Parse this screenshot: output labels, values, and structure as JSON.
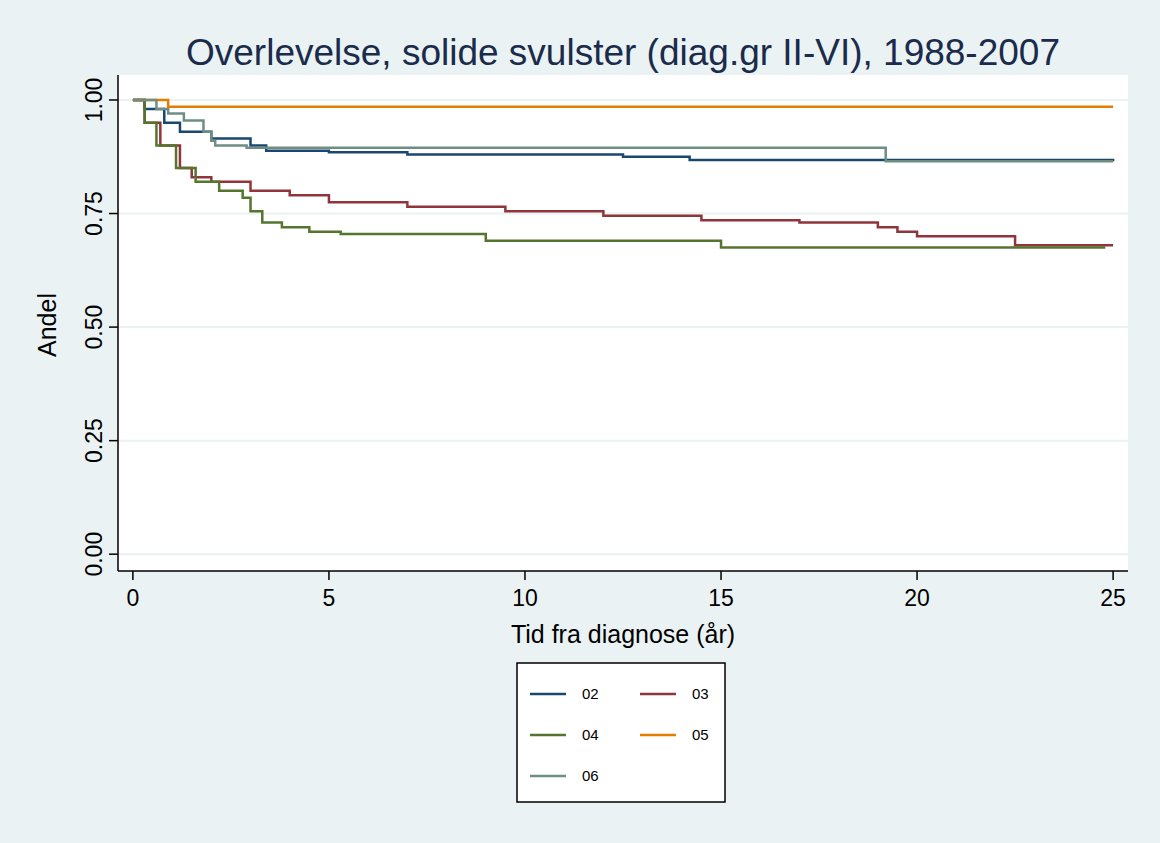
{
  "chart_data": {
    "type": "line",
    "title": "Overlevelse, solide svulster (diag.gr II-VI), 1988-2007",
    "x_label": "Tid fra diagnose (år)",
    "y_label": "Andel",
    "xlim": [
      -0.38,
      25.38
    ],
    "ylim": [
      -0.037,
      1.055
    ],
    "xticks": [
      0,
      5,
      10,
      15,
      20,
      25
    ],
    "yticks": [
      {
        "value": 0,
        "label": "0.00"
      },
      {
        "value": 0.25,
        "label": "0.25"
      },
      {
        "value": 0.5,
        "label": "0.50"
      },
      {
        "value": 0.75,
        "label": "0.75"
      },
      {
        "value": 1,
        "label": "1.00"
      }
    ],
    "grid": true,
    "legend": "bottom",
    "series": [
      {
        "name": "02",
        "color": "#1a476f",
        "line_style": "step",
        "x": [
          0,
          0.3,
          0.8,
          1.2,
          2,
          3,
          3.4,
          5,
          7,
          12.5,
          14.2,
          25
        ],
        "values": [
          1.0,
          0.98,
          0.95,
          0.93,
          0.915,
          0.9,
          0.888,
          0.885,
          0.88,
          0.875,
          0.868,
          0.865
        ]
      },
      {
        "name": "03",
        "color": "#90353b",
        "line_style": "step",
        "x": [
          0,
          0.3,
          0.7,
          1.2,
          1.5,
          2,
          3,
          4,
          5,
          7,
          9.5,
          12,
          14.5,
          17,
          19,
          19.5,
          20,
          22.5,
          25
        ],
        "values": [
          1.0,
          0.95,
          0.9,
          0.85,
          0.83,
          0.82,
          0.8,
          0.79,
          0.775,
          0.765,
          0.755,
          0.745,
          0.735,
          0.73,
          0.72,
          0.71,
          0.7,
          0.68,
          0.68
        ]
      },
      {
        "name": "04",
        "color": "#55752f",
        "line_style": "step",
        "x": [
          0,
          0.3,
          0.6,
          1.1,
          1.6,
          2.2,
          2.8,
          3,
          3.3,
          3.8,
          4.5,
          5.3,
          9,
          15,
          24.8
        ],
        "values": [
          1.0,
          0.95,
          0.9,
          0.85,
          0.82,
          0.8,
          0.785,
          0.755,
          0.73,
          0.72,
          0.71,
          0.705,
          0.69,
          0.675,
          0.675
        ]
      },
      {
        "name": "05",
        "color": "#e37e00",
        "line_style": "step",
        "x": [
          0,
          0.9,
          25
        ],
        "values": [
          1.0,
          0.985,
          0.985
        ]
      },
      {
        "name": "06",
        "color": "#6e8e84",
        "line_style": "step",
        "x": [
          0,
          0.6,
          0.9,
          1.3,
          1.8,
          2,
          2.1,
          2.9,
          3.3,
          19.2,
          25
        ],
        "values": [
          1.0,
          0.98,
          0.97,
          0.955,
          0.93,
          0.91,
          0.9,
          0.895,
          0.895,
          0.865,
          0.865
        ]
      }
    ]
  }
}
